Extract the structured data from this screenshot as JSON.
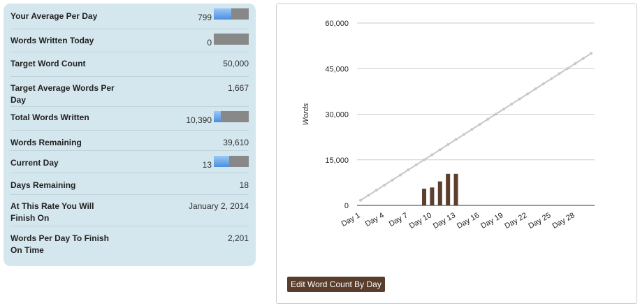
{
  "stats": [
    {
      "label": "Your Average Per Day",
      "value": "799",
      "bar_fraction": 0.5
    },
    {
      "label": "Words Written Today",
      "value": "0",
      "bar_fraction": 0.0
    },
    {
      "label": "Target Word Count",
      "value": "50,000"
    },
    {
      "label": "Target Average Words Per Day",
      "value": "1,667"
    },
    {
      "label": "Total Words Written",
      "value": "10,390",
      "bar_fraction": 0.2
    },
    {
      "label": "Words Remaining",
      "value": "39,610"
    },
    {
      "label": "Current Day",
      "value": "13",
      "bar_fraction": 0.43
    },
    {
      "label": "Days Remaining",
      "value": "18"
    },
    {
      "label": "At This Rate You Will Finish On",
      "value": "January 2, 2014"
    },
    {
      "label": "Words Per Day To Finish On Time",
      "value": "2,201"
    }
  ],
  "edit_button_label": "Edit Word Count By Day",
  "chart_data": {
    "type": "bar",
    "ylabel": "Words",
    "ylim": [
      0,
      60000
    ],
    "yticks": [
      "60,000",
      "45,000",
      "30,000",
      "15,000",
      "0"
    ],
    "ytick_values": [
      60000,
      45000,
      30000,
      15000,
      0
    ],
    "x_tick_labels": [
      "Day 1",
      "Day 4",
      "Day 7",
      "Day 10",
      "Day 13",
      "Day 16",
      "Day 19",
      "Day 22",
      "Day 25",
      "Day 28"
    ],
    "x_tick_days": [
      1,
      4,
      7,
      10,
      13,
      16,
      19,
      22,
      25,
      28
    ],
    "days": 30,
    "series": [
      {
        "kind": "bar",
        "days": [
          9,
          10,
          11,
          12,
          13
        ],
        "values": [
          5500,
          5900,
          7900,
          10390,
          10390
        ]
      },
      {
        "kind": "line",
        "start_day": 1,
        "values": [
          1667,
          3333,
          5000,
          6667,
          8333,
          10000,
          11667,
          13333,
          15000,
          16667,
          18333,
          20000,
          21667,
          23333,
          25000,
          26667,
          28333,
          30000,
          31667,
          33333,
          35000,
          36667,
          38333,
          40000,
          41667,
          43333,
          45000,
          46667,
          48333,
          50000
        ]
      }
    ],
    "grid": true,
    "colors": {
      "bar": "#5c3f2d",
      "line": "#c8c8c8",
      "grid": "#cccccc",
      "axis": "#333333"
    }
  }
}
